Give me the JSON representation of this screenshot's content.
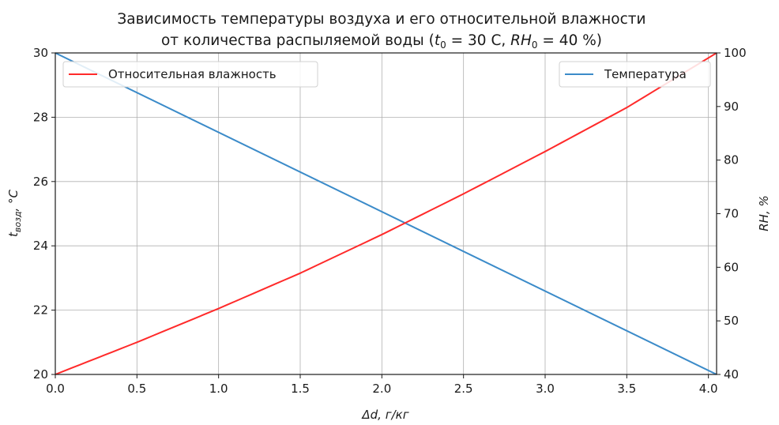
{
  "chart_data": {
    "type": "line",
    "title_line1": "Зависимость температуры воздуха и его относительной влажности",
    "title_line2_prefix": "от количества распыляемой воды (",
    "title_t": "t",
    "title_t_sub": "0",
    "title_t_rest": " = 30 C, ",
    "title_rh": "RH",
    "title_rh_sub": "0",
    "title_rh_rest": " = 40 %)",
    "xlabel": "Δd,  г/кг",
    "ylabel_left_t": "t",
    "ylabel_left_sub": "возд",
    "ylabel_left_unit": ", °C",
    "ylabel_right": "RH, %",
    "xlim": [
      0,
      4.05
    ],
    "ylim_left": [
      20,
      30
    ],
    "ylim_right": [
      40,
      100
    ],
    "x_ticks": [
      "0.0",
      "0.5",
      "1.0",
      "1.5",
      "2.0",
      "2.5",
      "3.0",
      "3.5",
      "4.0"
    ],
    "y_left_ticks": [
      "20",
      "22",
      "24",
      "26",
      "28",
      "30"
    ],
    "y_right_ticks": [
      "40",
      "50",
      "60",
      "70",
      "80",
      "90",
      "100"
    ],
    "grid": true,
    "series": [
      {
        "name": "Температура",
        "axis": "left",
        "color": "#3b8bc9",
        "x": [
          0,
          4.05
        ],
        "y": [
          30,
          20
        ]
      },
      {
        "name": "Относительная влажность",
        "axis": "right",
        "color": "#ff2a2a",
        "x": [
          0,
          0.5,
          1.0,
          1.5,
          2.0,
          2.5,
          3.0,
          3.5,
          4.05
        ],
        "y": [
          40,
          46.0,
          52.3,
          58.9,
          66.1,
          73.7,
          81.6,
          89.8,
          100
        ]
      }
    ],
    "legend_left": {
      "placement": "top-left",
      "label": "Относительная влажность"
    },
    "legend_right": {
      "placement": "top-right",
      "label": "Температура"
    }
  }
}
